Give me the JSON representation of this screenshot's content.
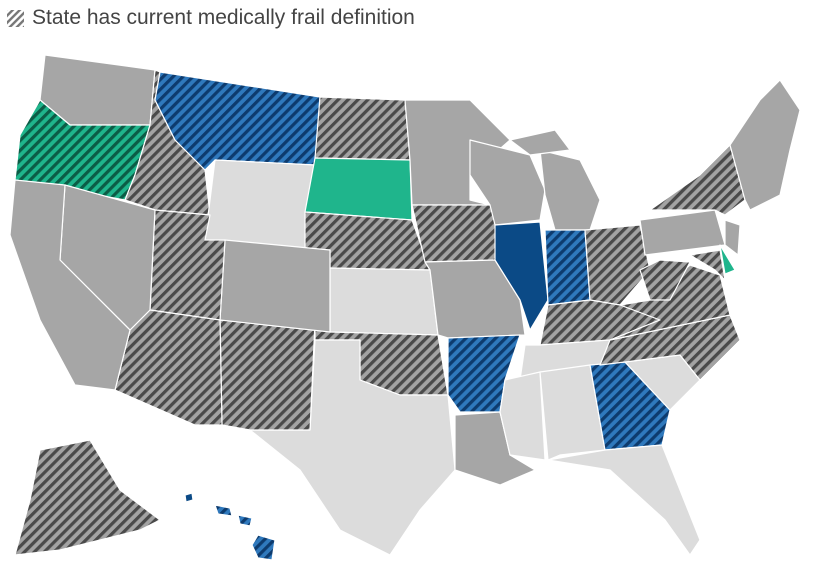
{
  "legend": {
    "label": "State has current medically frail definition"
  }
}
